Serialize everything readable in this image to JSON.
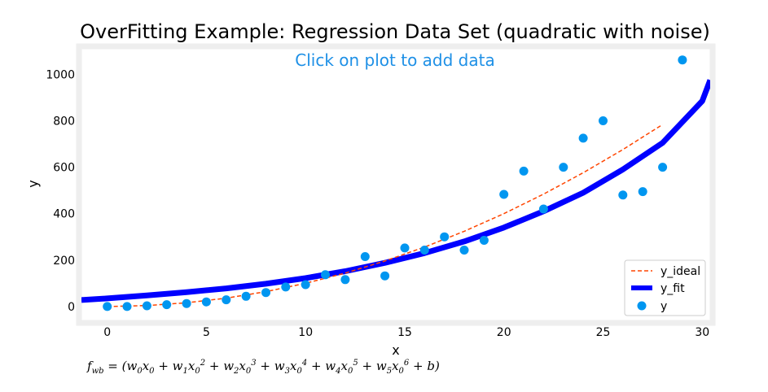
{
  "chart_data": {
    "type": "scatter",
    "title": "OverFitting Example: Regression Data Set (quadratic with noise)",
    "subtitle": "Click on plot to add data",
    "xlabel": "x",
    "ylabel": "y",
    "xlim": [
      -1.3,
      30.4
    ],
    "ylim": [
      -60,
      1110
    ],
    "xticks": [
      0,
      5,
      10,
      15,
      20,
      25,
      30
    ],
    "yticks": [
      0,
      200,
      400,
      600,
      800,
      1000
    ],
    "legend_position": "lower-right",
    "colors": {
      "y_ideal": "#FF4500",
      "y_fit": "#0000FF",
      "y": "#0096F0",
      "frame": "#EEEEEE"
    },
    "series": [
      {
        "name": "y_ideal",
        "kind": "line-dashed",
        "x": [
          0,
          2,
          4,
          6,
          8,
          10,
          12,
          14,
          16,
          18,
          20,
          22,
          24,
          26,
          28
        ],
        "y": [
          0,
          4,
          16,
          36,
          64,
          100,
          144,
          196,
          256,
          324,
          400,
          484,
          576,
          676,
          784
        ]
      },
      {
        "name": "y_fit",
        "kind": "line-thick",
        "x": [
          -1.3,
          0,
          2,
          4,
          6,
          8,
          10,
          12,
          14,
          16,
          18,
          20,
          22,
          24,
          26,
          28,
          30,
          30.4
        ],
        "y": [
          28,
          35,
          48,
          62,
          78,
          98,
          122,
          152,
          188,
          230,
          280,
          340,
          410,
          490,
          590,
          705,
          885,
          975
        ]
      },
      {
        "name": "y",
        "kind": "points",
        "x": [
          0,
          1,
          2,
          3,
          4,
          5,
          6,
          7,
          8,
          9,
          10,
          11,
          12,
          13,
          14,
          15,
          16,
          17,
          18,
          19,
          20,
          21,
          22,
          23,
          24,
          25,
          26,
          27,
          28,
          29
        ],
        "y": [
          0,
          0,
          3,
          8,
          13,
          20,
          29,
          44,
          60,
          84,
          94,
          137,
          116,
          215,
          132,
          252,
          243,
          300,
          243,
          285,
          483,
          583,
          420,
          600,
          725,
          800,
          480,
          495,
          600,
          1062
        ]
      }
    ]
  },
  "formula": "f_wb = (w0x0 + w1x0^2 + w2x0^3 + w3x0^4 + w4x0^5 + w5x0^6 + b)"
}
